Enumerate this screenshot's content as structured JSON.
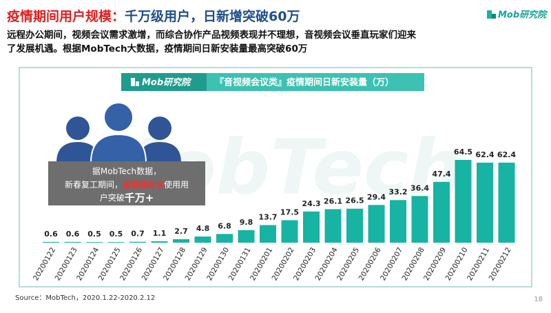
{
  "header": {
    "title_red": "疫情期间用户规模：",
    "title_blue": "千万级用户，日新增突破60万",
    "logo": "Mob研究院"
  },
  "subtitle": [
    "远程办公期间，视频会议需求激增，而综合协作产品视频表现并不理想，音视频会议垂直玩家们迎来",
    "了发展机遇。根据MobTech大数据，疫情期间日新安装量最高突破60万"
  ],
  "callout": {
    "line1": "据MobTech数据，",
    "line2_parts": [
      "新春复工期间，",
      "音视频会议",
      "使用用"
    ],
    "line3_parts": [
      "户突破",
      "千万+"
    ]
  },
  "chart_data": {
    "type": "bar",
    "title": "『音视频会议类』疫情期间日新安装量（万）",
    "logo": "Mob研究院",
    "categories": [
      "20200122",
      "20200123",
      "20200124",
      "20200125",
      "20200126",
      "20200127",
      "20200128",
      "20200129",
      "20200130",
      "20200131",
      "20200201",
      "20200202",
      "20200203",
      "20200204",
      "20200205",
      "20200206",
      "20200207",
      "20200208",
      "20200209",
      "20200210",
      "20200211",
      "20200212"
    ],
    "values": [
      0.6,
      0.6,
      0.5,
      0.5,
      0.7,
      1.1,
      2.7,
      4.8,
      6.8,
      9.8,
      13.7,
      17.5,
      24.3,
      26.1,
      26.5,
      29.4,
      33.2,
      36.4,
      47.4,
      64.5,
      62.4,
      62.4
    ],
    "color": "#17b3a3"
  },
  "watermark": "MobTech",
  "source": "Source：MobTech，2020.1.22-2020.2.12",
  "page_number": "18"
}
